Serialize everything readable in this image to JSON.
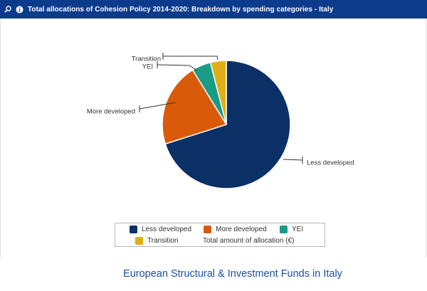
{
  "header": {
    "title": "Total allocations of Cohesion Policy 2014-2020: Breakdown by spending categories - Italy",
    "search_icon": "search-icon",
    "info_icon": "info-icon",
    "background_color": "#0d3b8c"
  },
  "chart_data": {
    "type": "pie",
    "categories": [
      "Less developed",
      "More developed",
      "YEI",
      "Transition"
    ],
    "values": [
      70.1,
      21.1,
      4.8,
      4.0
    ],
    "unit": "%",
    "colors": [
      "#0a3066",
      "#d95b0a",
      "#1a9b86",
      "#e0ae16"
    ],
    "legend_position": "bottom",
    "legend_note": "Total amount of allocation (€)"
  },
  "legend": {
    "items": [
      {
        "label": "Less developed",
        "color": "#0a3066"
      },
      {
        "label": "More developed",
        "color": "#d95b0a"
      },
      {
        "label": "YEI",
        "color": "#1a9b86"
      },
      {
        "label": "Transition",
        "color": "#e0ae16"
      }
    ],
    "note": "Total amount of allocation (€)"
  },
  "footer": {
    "title": "European Structural & Investment Funds in Italy"
  }
}
